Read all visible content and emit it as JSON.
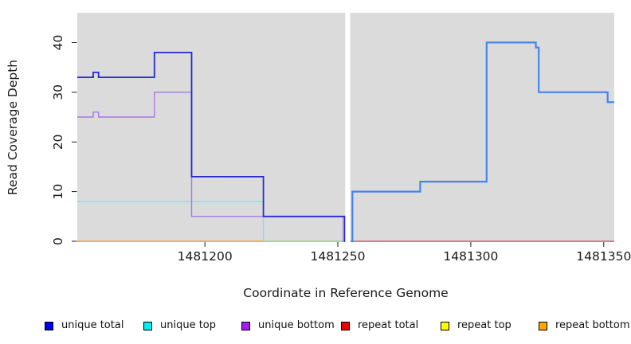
{
  "chart_data": {
    "type": "line",
    "subtype": "step",
    "title": "",
    "xlabel": "Coordinate in Reference Genome",
    "ylabel": "Read Coverage Depth",
    "xlim": [
      1481152,
      1481354
    ],
    "ylim": [
      0,
      46
    ],
    "x_ticks": [
      1481200,
      1481250,
      1481300,
      1481350
    ],
    "x_tick_labels": [
      "1481200",
      "1481250",
      "1481300",
      "1481350"
    ],
    "y_ticks": [
      0,
      10,
      20,
      30,
      40
    ],
    "y_tick_labels": [
      "0",
      "10",
      "20",
      "30",
      "40"
    ],
    "grid": false,
    "panel_bg": "#DBDBDB",
    "gap": {
      "x_start": 1481252.8,
      "x_end": 1481254.7
    },
    "series": [
      {
        "id": "repeat-bottom-left",
        "segment": "left",
        "color": "#FFA01E",
        "width": 1.6,
        "points": [
          [
            1481152,
            0
          ]
        ],
        "end": 1481222
      },
      {
        "id": "unique-top-left",
        "segment": "left",
        "color": "#7DE4E4",
        "width": 1.4,
        "points": [
          [
            1481152,
            8
          ],
          [
            1481222,
            0
          ]
        ],
        "end": 1481222
      },
      {
        "id": "zero-overlap-left",
        "segment": "left",
        "color": "#90D690",
        "width": 1.4,
        "points": [
          [
            1481222,
            0
          ]
        ],
        "end": 1481253
      },
      {
        "id": "unique-bottom-left",
        "segment": "left",
        "color": "#A878E6",
        "width": 1.4,
        "points": [
          [
            1481152,
            25
          ],
          [
            1481158,
            26
          ],
          [
            1481160,
            25
          ],
          [
            1481181,
            30
          ],
          [
            1481195,
            5
          ],
          [
            1481252,
            0
          ]
        ],
        "end": 1481252.4
      },
      {
        "id": "unique-total-left",
        "segment": "left",
        "color": "#2828D0",
        "width": 1.8,
        "points": [
          [
            1481152,
            33
          ],
          [
            1481158,
            34
          ],
          [
            1481160,
            33
          ],
          [
            1481181,
            38
          ],
          [
            1481195,
            13
          ],
          [
            1481222,
            5
          ],
          [
            1481252.6,
            0
          ]
        ],
        "end": 1481253
      },
      {
        "id": "repeat-total-right",
        "segment": "right",
        "color": "#E25476",
        "width": 1.5,
        "points": [
          [
            1481254.9,
            0
          ]
        ],
        "end": 1481354
      },
      {
        "id": "unique-total-right",
        "segment": "right",
        "color": "#4285F0",
        "width": 2.2,
        "points": [
          [
            1481254.9,
            0
          ],
          [
            1481255.5,
            10
          ],
          [
            1481281,
            12
          ],
          [
            1481306,
            40
          ],
          [
            1481324.5,
            39
          ],
          [
            1481325.6,
            30
          ],
          [
            1481351.5,
            28
          ]
        ],
        "end": 1481354
      }
    ],
    "legend": {
      "position": "bottom",
      "items": [
        {
          "label": "unique total",
          "color": "#0000EE"
        },
        {
          "label": "unique top",
          "color": "#00EEEE"
        },
        {
          "label": "unique bottom",
          "color": "#A020F0"
        },
        {
          "label": "repeat total",
          "color": "#EE0000"
        },
        {
          "label": "repeat top",
          "color": "#FFFF00"
        },
        {
          "label": "repeat bottom",
          "color": "#FFA500"
        }
      ]
    }
  }
}
